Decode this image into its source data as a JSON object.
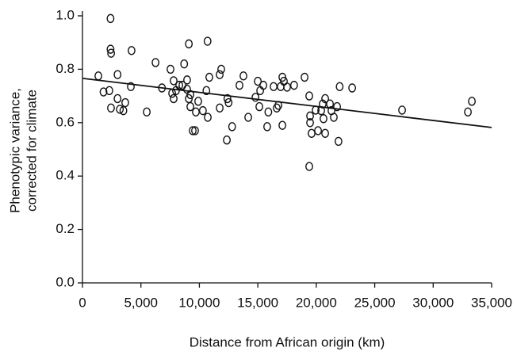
{
  "chart_data": {
    "type": "scatter",
    "xlabel": "Distance from African origin (km)",
    "ylabel": [
      "Phenotypic variance,",
      "corrected for climate"
    ],
    "xlim": [
      0,
      35000
    ],
    "ylim": [
      0,
      1.0
    ],
    "xticks": [
      0,
      {
        "value": 5000,
        "label": "5,000"
      },
      {
        "value": 10000,
        "label": "10,000"
      },
      {
        "value": 15000,
        "label": "15,000"
      },
      {
        "value": 20000,
        "label": "20,000"
      },
      {
        "value": 25000,
        "label": "25,000"
      },
      {
        "value": 30000,
        "label": "30,000"
      },
      {
        "value": 35000,
        "label": "35,000"
      }
    ],
    "yticks": [
      {
        "value": 0,
        "label": "0.0"
      },
      0.2,
      0.4,
      0.6,
      0.8,
      {
        "value": 1.0,
        "label": "1.0"
      }
    ],
    "grid": false,
    "color": "#111111",
    "x": [
      2400,
      1360,
      2400,
      2450,
      3000,
      4200,
      6250,
      9100,
      10700,
      1800,
      2300,
      2440,
      3000,
      3200,
      3500,
      3660,
      4140,
      5500,
      6800,
      7530,
      7800,
      7670,
      7800,
      8000,
      8280,
      8700,
      8550,
      8950,
      8950,
      9230,
      9100,
      9230,
      9430,
      9630,
      9700,
      9900,
      10300,
      10600,
      10720,
      10850,
      11740,
      11870,
      11740,
      12400,
      12500,
      12350,
      12800,
      13430,
      13770,
      14180,
      14800,
      15000,
      15130,
      15200,
      15470,
      15900,
      15800,
      16350,
      16620,
      16760,
      16960,
      17100,
      17230,
      17100,
      17500,
      18100,
      19000,
      19400,
      19470,
      19470,
      19600,
      19400,
      19950,
      20150,
      20420,
      20550,
      20760,
      20620,
      20760,
      21170,
      21300,
      21500,
      21780,
      21900,
      22000,
      23070,
      27340,
      32970,
      33310
    ],
    "y": [
      0.99,
      0.775,
      0.875,
      0.86,
      0.78,
      0.87,
      0.825,
      0.895,
      0.905,
      0.715,
      0.72,
      0.655,
      0.69,
      0.65,
      0.645,
      0.675,
      0.735,
      0.64,
      0.73,
      0.8,
      0.757,
      0.71,
      0.69,
      0.72,
      0.74,
      0.82,
      0.74,
      0.76,
      0.725,
      0.705,
      0.69,
      0.66,
      0.57,
      0.57,
      0.64,
      0.68,
      0.645,
      0.72,
      0.62,
      0.77,
      0.655,
      0.8,
      0.78,
      0.69,
      0.675,
      0.535,
      0.585,
      0.74,
      0.775,
      0.62,
      0.695,
      0.755,
      0.66,
      0.72,
      0.74,
      0.64,
      0.585,
      0.735,
      0.655,
      0.665,
      0.735,
      0.77,
      0.755,
      0.59,
      0.733,
      0.74,
      0.77,
      0.7,
      0.625,
      0.6,
      0.56,
      0.436,
      0.647,
      0.57,
      0.645,
      0.67,
      0.69,
      0.615,
      0.56,
      0.67,
      0.645,
      0.62,
      0.66,
      0.53,
      0.735,
      0.73,
      0.647,
      0.64,
      0.68
    ],
    "trendline": {
      "x": [
        0,
        35000
      ],
      "y": [
        0.766,
        0.582
      ]
    }
  }
}
